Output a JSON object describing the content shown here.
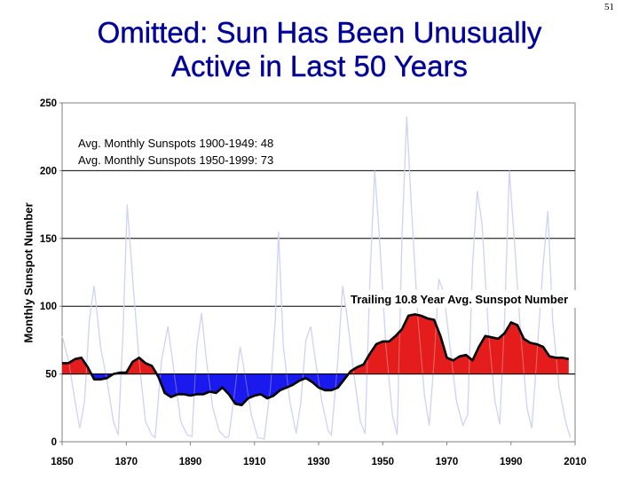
{
  "slide_number": "51",
  "title_line1": "Omitted:  Sun Has Been Unusually",
  "title_line2": "Active in Last 50 Years",
  "chart_data": {
    "type": "area",
    "ylabel": "Monthly Sunspot Number",
    "xlim": [
      1850,
      2010
    ],
    "ylim": [
      0,
      250
    ],
    "x_ticks": [
      1850,
      1870,
      1890,
      1910,
      1930,
      1950,
      1970,
      1990,
      2010
    ],
    "y_ticks": [
      0,
      50,
      100,
      150,
      200,
      250
    ],
    "baseline": 50,
    "grid": "horizontal",
    "annotations": [
      {
        "text": "Avg. Monthly Sunspots 1900-1949:  48"
      },
      {
        "text": "Avg. Monthly Sunspots 1950-1999:  73"
      },
      {
        "text": "Trailing 10.8 Year Avg. Sunspot Number"
      }
    ],
    "series": [
      {
        "name": "Trailing 10.8 Year Avg. Sunspot Number",
        "color_above": "#e41c1c",
        "color_below": "#1a1aee",
        "x": [
          1850,
          1852,
          1854,
          1856,
          1858,
          1860,
          1862,
          1864,
          1866,
          1868,
          1870,
          1872,
          1874,
          1876,
          1878,
          1880,
          1882,
          1884,
          1886,
          1888,
          1890,
          1892,
          1894,
          1896,
          1898,
          1900,
          1902,
          1904,
          1906,
          1908,
          1910,
          1912,
          1914,
          1916,
          1918,
          1920,
          1922,
          1924,
          1926,
          1928,
          1930,
          1932,
          1934,
          1936,
          1938,
          1940,
          1942,
          1944,
          1946,
          1948,
          1950,
          1952,
          1954,
          1956,
          1958,
          1960,
          1962,
          1964,
          1966,
          1968,
          1970,
          1972,
          1974,
          1976,
          1978,
          1980,
          1982,
          1984,
          1986,
          1988,
          1990,
          1992,
          1994,
          1996,
          1998,
          2000,
          2002,
          2004,
          2006,
          2008
        ],
        "values": [
          58,
          58,
          61,
          62,
          55,
          46,
          46,
          47,
          50,
          51,
          51,
          59,
          62,
          58,
          56,
          48,
          36,
          33,
          35,
          35,
          34,
          35,
          35,
          37,
          36,
          40,
          35,
          28,
          27,
          32,
          34,
          35,
          32,
          34,
          38,
          40,
          42,
          45,
          47,
          44,
          40,
          38,
          38,
          40,
          46,
          52,
          55,
          57,
          65,
          72,
          74,
          74,
          78,
          83,
          93,
          94,
          93,
          91,
          90,
          78,
          62,
          60,
          63,
          64,
          60,
          70,
          78,
          77,
          76,
          80,
          88,
          86,
          76,
          73,
          72,
          70,
          63,
          62,
          62,
          61
        ]
      },
      {
        "name": "Monthly sunspot number",
        "color": "#b8bdf2",
        "x": [
          1850,
          1852,
          1854,
          1855.5,
          1857,
          1858.5,
          1860,
          1862,
          1864,
          1866,
          1867.5,
          1869,
          1870.3,
          1872,
          1874,
          1876,
          1878,
          1879,
          1881,
          1883,
          1885,
          1887,
          1889,
          1890.5,
          1892,
          1893.5,
          1895,
          1897,
          1899,
          1901,
          1902,
          1904,
          1905.5,
          1907,
          1909,
          1911,
          1913,
          1915,
          1916.5,
          1917.5,
          1919,
          1921,
          1923,
          1924.5,
          1926,
          1927.5,
          1929,
          1931,
          1933,
          1934,
          1936,
          1937.5,
          1939,
          1941,
          1943,
          1944.5,
          1946,
          1947.5,
          1949,
          1951,
          1953,
          1954.5,
          1956,
          1957.5,
          1959,
          1961,
          1963,
          1964.5,
          1966,
          1967.5,
          1969,
          1971,
          1973,
          1975,
          1976.5,
          1978,
          1979.5,
          1981,
          1983,
          1985,
          1986.5,
          1988,
          1989.5,
          1991,
          1993,
          1995,
          1996.5,
          1998,
          2000,
          2001.5,
          2003,
          2005,
          2007,
          2008.5
        ],
        "values": [
          78,
          60,
          30,
          10,
          30,
          90,
          115,
          70,
          45,
          15,
          5,
          80,
          175,
          120,
          60,
          15,
          5,
          3,
          60,
          85,
          50,
          15,
          5,
          4,
          70,
          95,
          60,
          25,
          8,
          3,
          4,
          40,
          70,
          50,
          20,
          3,
          2,
          40,
          90,
          155,
          70,
          30,
          6,
          30,
          75,
          85,
          60,
          30,
          8,
          5,
          60,
          115,
          90,
          50,
          15,
          6,
          120,
          200,
          150,
          70,
          20,
          5,
          150,
          240,
          170,
          90,
          35,
          12,
          60,
          120,
          110,
          70,
          30,
          12,
          20,
          130,
          185,
          160,
          80,
          30,
          13,
          90,
          200,
          150,
          80,
          25,
          10,
          60,
          130,
          170,
          90,
          40,
          15,
          3
        ]
      }
    ]
  }
}
